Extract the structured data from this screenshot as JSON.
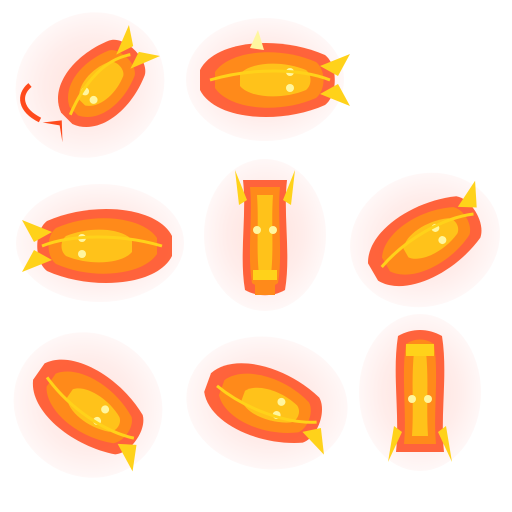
{
  "sprite_sheet": {
    "background": "#ffffff",
    "palette": {
      "halo": "#ffd2cc",
      "flame_outer": "#ff4a1c",
      "flame_mid": "#ff8a1a",
      "flame_inner": "#ffc21a",
      "highlight": "#fff6a0",
      "outline": "#ffd21a"
    },
    "frames": [
      {
        "id": "frame-1",
        "facing": "up-left",
        "icon": "fire-dragon-head-icon"
      },
      {
        "id": "frame-2",
        "facing": "right",
        "icon": "fire-dragon-head-icon"
      },
      {
        "id": "frame-3",
        "facing": "up",
        "icon": "fire-dragon-head-icon"
      },
      {
        "id": "frame-4",
        "facing": "left",
        "icon": "fire-dragon-head-icon"
      },
      {
        "id": "frame-5",
        "facing": "up-right",
        "icon": "fire-dragon-head-icon"
      },
      {
        "id": "frame-6",
        "facing": "down-left",
        "icon": "fire-dragon-head-icon"
      },
      {
        "id": "frame-7",
        "facing": "down-right",
        "icon": "fire-dragon-head-icon"
      },
      {
        "id": "frame-8",
        "facing": "down",
        "icon": "fire-dragon-head-icon"
      }
    ]
  }
}
